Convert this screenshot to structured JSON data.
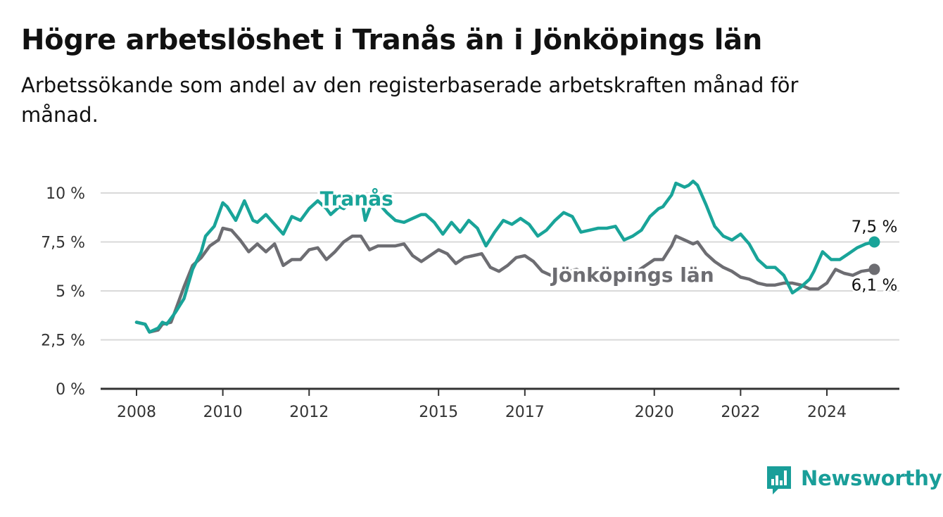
{
  "title": "Högre arbetslöshet i Tranås än i Jönköpings län",
  "subtitle": "Arbetssökande som andel av den registerbaserade arbetskraften månad för månad.",
  "brand": {
    "name": "Newsworthy",
    "icon": "newsworthy-logo-icon",
    "color": "#199e99"
  },
  "chart_data": {
    "type": "line",
    "title": "Högre arbetslöshet i Tranås än i Jönköpings län",
    "subtitle": "Arbetssökande som andel av den registerbaserade arbetskraften månad för månad.",
    "xlabel": "",
    "ylabel": "",
    "xlim": [
      2008,
      2025.3
    ],
    "ylim": [
      0,
      10
    ],
    "grid": true,
    "x_ticks": [
      2008,
      2010,
      2012,
      2015,
      2017,
      2020,
      2022,
      2024
    ],
    "x_tick_labels": [
      "2008",
      "2010",
      "2012",
      "2015",
      "2017",
      "2020",
      "2022",
      "2024"
    ],
    "y_ticks": [
      0,
      2.5,
      5,
      7.5,
      10
    ],
    "y_tick_labels": [
      "0 %",
      "2,5 %",
      "5 %",
      "7,5 %",
      "10 %"
    ],
    "series": [
      {
        "name": "Tranås",
        "color": "#19a499",
        "end_label": "7,5 %",
        "x": [
          2008.0,
          2008.2,
          2008.3,
          2008.5,
          2008.6,
          2008.7,
          2008.9,
          2009.1,
          2009.3,
          2009.5,
          2009.6,
          2009.8,
          2010.0,
          2010.1,
          2010.3,
          2010.5,
          2010.7,
          2010.8,
          2011.0,
          2011.2,
          2011.4,
          2011.6,
          2011.8,
          2012.0,
          2012.2,
          2012.4,
          2012.5,
          2012.7,
          2012.8,
          2013.0,
          2013.2,
          2013.3,
          2013.5,
          2013.6,
          2013.8,
          2014.0,
          2014.2,
          2014.4,
          2014.6,
          2014.7,
          2014.9,
          2015.1,
          2015.3,
          2015.5,
          2015.7,
          2015.9,
          2016.1,
          2016.3,
          2016.5,
          2016.7,
          2016.9,
          2017.1,
          2017.3,
          2017.5,
          2017.7,
          2017.9,
          2018.1,
          2018.3,
          2018.5,
          2018.7,
          2018.9,
          2019.1,
          2019.3,
          2019.5,
          2019.7,
          2019.9,
          2020.1,
          2020.2,
          2020.4,
          2020.5,
          2020.7,
          2020.8,
          2020.9,
          2021.0,
          2021.2,
          2021.4,
          2021.6,
          2021.8,
          2022.0,
          2022.2,
          2022.4,
          2022.6,
          2022.8,
          2023.0,
          2023.2,
          2023.4,
          2023.6,
          2023.7,
          2023.9,
          2024.1,
          2024.3,
          2024.5,
          2024.7,
          2024.9,
          2025.1
        ],
        "values": [
          3.4,
          3.3,
          2.9,
          3.1,
          3.4,
          3.3,
          3.9,
          4.6,
          6.1,
          7.0,
          7.8,
          8.3,
          9.5,
          9.3,
          8.6,
          9.6,
          8.6,
          8.5,
          8.9,
          8.4,
          7.9,
          8.8,
          8.6,
          9.2,
          9.6,
          9.2,
          8.9,
          9.3,
          9.2,
          9.6,
          9.9,
          8.6,
          9.8,
          9.5,
          9.0,
          8.6,
          8.5,
          8.7,
          8.9,
          8.9,
          8.5,
          7.9,
          8.5,
          8.0,
          8.6,
          8.2,
          7.3,
          8.0,
          8.6,
          8.4,
          8.7,
          8.4,
          7.8,
          8.1,
          8.6,
          9.0,
          8.8,
          8.0,
          8.1,
          8.2,
          8.2,
          8.3,
          7.6,
          7.8,
          8.1,
          8.8,
          9.2,
          9.3,
          9.9,
          10.5,
          10.3,
          10.4,
          10.6,
          10.4,
          9.4,
          8.3,
          7.8,
          7.6,
          7.9,
          7.4,
          6.6,
          6.2,
          6.2,
          5.8,
          4.9,
          5.2,
          5.6,
          6.0,
          7.0,
          6.6,
          6.6,
          6.9,
          7.2,
          7.4,
          7.5
        ]
      },
      {
        "name": "Jönköpings län",
        "color": "#6d6d72",
        "end_label": "6,1 %",
        "x": [
          2008.0,
          2008.2,
          2008.3,
          2008.5,
          2008.6,
          2008.8,
          2008.9,
          2009.1,
          2009.3,
          2009.5,
          2009.7,
          2009.9,
          2010.0,
          2010.2,
          2010.4,
          2010.6,
          2010.8,
          2011.0,
          2011.2,
          2011.4,
          2011.6,
          2011.8,
          2012.0,
          2012.2,
          2012.4,
          2012.6,
          2012.8,
          2013.0,
          2013.2,
          2013.4,
          2013.6,
          2013.8,
          2014.0,
          2014.2,
          2014.4,
          2014.6,
          2014.8,
          2015.0,
          2015.2,
          2015.4,
          2015.6,
          2015.8,
          2016.0,
          2016.2,
          2016.4,
          2016.6,
          2016.8,
          2017.0,
          2017.2,
          2017.4,
          2017.6,
          2017.8,
          2018.0,
          2018.2,
          2018.4,
          2018.6,
          2018.8,
          2019.0,
          2019.2,
          2019.4,
          2019.6,
          2019.8,
          2020.0,
          2020.2,
          2020.4,
          2020.5,
          2020.7,
          2020.9,
          2021.0,
          2021.2,
          2021.4,
          2021.6,
          2021.8,
          2022.0,
          2022.2,
          2022.4,
          2022.6,
          2022.8,
          2023.0,
          2023.2,
          2023.4,
          2023.6,
          2023.8,
          2024.0,
          2024.2,
          2024.4,
          2024.6,
          2024.8,
          2025.1
        ],
        "values": [
          3.4,
          3.3,
          2.9,
          3.0,
          3.3,
          3.4,
          4.0,
          5.2,
          6.3,
          6.7,
          7.3,
          7.6,
          8.2,
          8.1,
          7.6,
          7.0,
          7.4,
          7.0,
          7.4,
          6.3,
          6.6,
          6.6,
          7.1,
          7.2,
          6.6,
          7.0,
          7.5,
          7.8,
          7.8,
          7.1,
          7.3,
          7.3,
          7.3,
          7.4,
          6.8,
          6.5,
          6.8,
          7.1,
          6.9,
          6.4,
          6.7,
          6.8,
          6.9,
          6.2,
          6.0,
          6.3,
          6.7,
          6.8,
          6.5,
          6.0,
          5.8,
          5.9,
          6.0,
          6.1,
          5.9,
          5.8,
          5.7,
          5.7,
          5.8,
          5.9,
          6.0,
          6.3,
          6.6,
          6.6,
          7.3,
          7.8,
          7.6,
          7.4,
          7.5,
          6.9,
          6.5,
          6.2,
          6.0,
          5.7,
          5.6,
          5.4,
          5.3,
          5.3,
          5.4,
          5.4,
          5.3,
          5.1,
          5.1,
          5.4,
          6.1,
          5.9,
          5.8,
          6.0,
          6.1
        ]
      }
    ],
    "inline_labels": [
      {
        "series": "Tranås",
        "x": 2013.1,
        "y": 9.7
      },
      {
        "series": "Jönköpings län",
        "x": 2019.5,
        "y": 5.8
      }
    ]
  }
}
